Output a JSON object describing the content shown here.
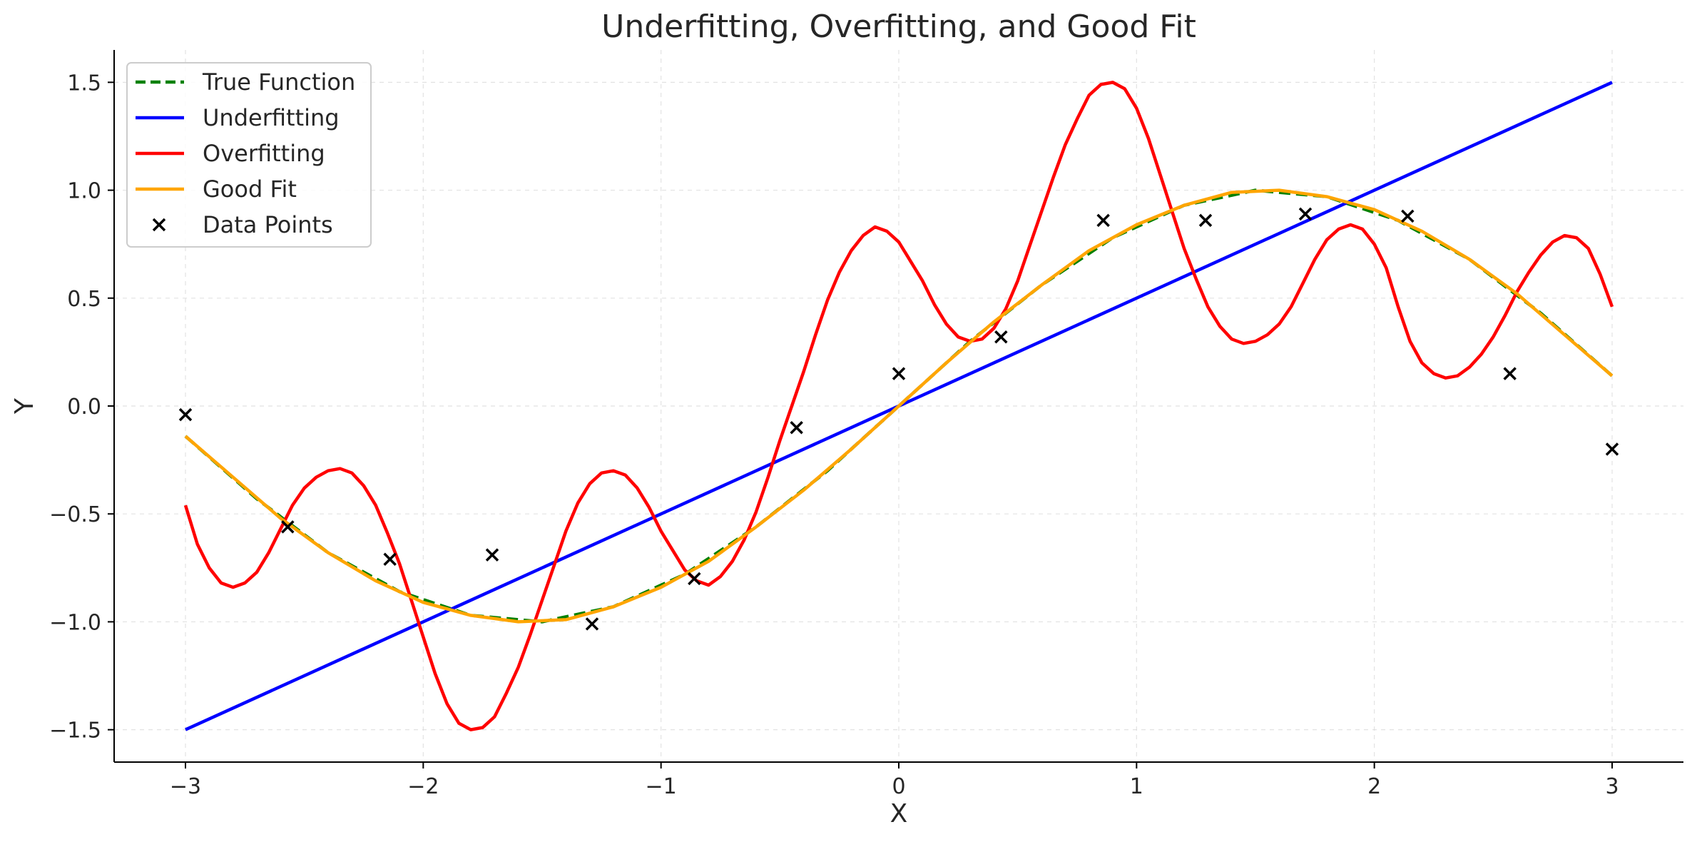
{
  "chart_data": {
    "type": "line",
    "title": "Underfitting, Overfitting, and Good Fit",
    "xlabel": "X",
    "ylabel": "Y",
    "xlim": [
      -3.3,
      3.3
    ],
    "ylim": [
      -1.65,
      1.65
    ],
    "x_ticks": [
      -3,
      -2,
      -1,
      0,
      1,
      2,
      3
    ],
    "x_tick_labels": [
      "−3",
      "−2",
      "−1",
      "0",
      "1",
      "2",
      "3"
    ],
    "y_ticks": [
      -1.5,
      -1.0,
      -0.5,
      0.0,
      0.5,
      1.0,
      1.5
    ],
    "y_tick_labels": [
      "−1.5",
      "−1.0",
      "−0.5",
      "0.0",
      "0.5",
      "1.0",
      "1.5"
    ],
    "grid": true,
    "legend_position": "top-left",
    "series": [
      {
        "name": "True Function",
        "style": "dashed",
        "color": "#008000",
        "x": [
          -3.0,
          -2.7,
          -2.4,
          -2.1,
          -1.8,
          -1.5,
          -1.2,
          -0.9,
          -0.6,
          -0.3,
          0.0,
          0.3,
          0.6,
          0.9,
          1.2,
          1.5,
          1.8,
          2.1,
          2.4,
          2.7,
          3.0
        ],
        "y": [
          -0.14,
          -0.43,
          -0.68,
          -0.86,
          -0.97,
          -1.0,
          -0.93,
          -0.78,
          -0.56,
          -0.3,
          0.0,
          0.3,
          0.56,
          0.78,
          0.93,
          1.0,
          0.97,
          0.86,
          0.68,
          0.43,
          0.14
        ]
      },
      {
        "name": "Underfitting",
        "style": "solid",
        "color": "#0000ff",
        "x": [
          -3.0,
          3.0
        ],
        "y": [
          -1.5,
          1.5
        ]
      },
      {
        "name": "Overfitting",
        "style": "solid",
        "color": "#ff0000",
        "x": [
          -3.0,
          -2.95,
          -2.9,
          -2.85,
          -2.8,
          -2.75,
          -2.7,
          -2.65,
          -2.6,
          -2.55,
          -2.5,
          -2.45,
          -2.4,
          -2.35,
          -2.3,
          -2.25,
          -2.2,
          -2.15,
          -2.1,
          -2.05,
          -2.0,
          -1.95,
          -1.9,
          -1.85,
          -1.8,
          -1.75,
          -1.7,
          -1.65,
          -1.6,
          -1.55,
          -1.5,
          -1.45,
          -1.4,
          -1.35,
          -1.3,
          -1.25,
          -1.2,
          -1.15,
          -1.1,
          -1.05,
          -1.0,
          -0.95,
          -0.9,
          -0.85,
          -0.8,
          -0.75,
          -0.7,
          -0.65,
          -0.6,
          -0.55,
          -0.5,
          -0.45,
          -0.4,
          -0.35,
          -0.3,
          -0.25,
          -0.2,
          -0.15,
          -0.1,
          -0.05,
          0.0,
          0.05,
          0.1,
          0.15,
          0.2,
          0.25,
          0.3,
          0.35,
          0.4,
          0.45,
          0.5,
          0.55,
          0.6,
          0.65,
          0.7,
          0.75,
          0.8,
          0.85,
          0.9,
          0.95,
          1.0,
          1.05,
          1.1,
          1.15,
          1.2,
          1.25,
          1.3,
          1.35,
          1.4,
          1.45,
          1.5,
          1.55,
          1.6,
          1.65,
          1.7,
          1.75,
          1.8,
          1.85,
          1.9,
          1.95,
          2.0,
          2.05,
          2.1,
          2.15,
          2.2,
          2.25,
          2.3,
          2.35,
          2.4,
          2.45,
          2.5,
          2.55,
          2.6,
          2.65,
          2.7,
          2.75,
          2.8,
          2.85,
          2.9,
          2.95,
          3.0
        ],
        "y": [
          -0.46,
          -0.64,
          -0.75,
          -0.82,
          -0.84,
          -0.82,
          -0.77,
          -0.68,
          -0.57,
          -0.46,
          -0.38,
          -0.33,
          -0.3,
          -0.29,
          -0.31,
          -0.37,
          -0.46,
          -0.59,
          -0.73,
          -0.9,
          -1.07,
          -1.24,
          -1.38,
          -1.47,
          -1.5,
          -1.49,
          -1.44,
          -1.33,
          -1.21,
          -1.06,
          -0.9,
          -0.74,
          -0.58,
          -0.45,
          -0.36,
          -0.31,
          -0.3,
          -0.32,
          -0.38,
          -0.47,
          -0.58,
          -0.67,
          -0.76,
          -0.81,
          -0.83,
          -0.79,
          -0.72,
          -0.62,
          -0.49,
          -0.33,
          -0.16,
          0.0,
          0.16,
          0.33,
          0.49,
          0.62,
          0.72,
          0.79,
          0.83,
          0.81,
          0.76,
          0.67,
          0.58,
          0.47,
          0.38,
          0.32,
          0.3,
          0.31,
          0.36,
          0.45,
          0.58,
          0.74,
          0.9,
          1.06,
          1.21,
          1.33,
          1.44,
          1.49,
          1.5,
          1.47,
          1.38,
          1.24,
          1.07,
          0.9,
          0.73,
          0.59,
          0.46,
          0.37,
          0.31,
          0.29,
          0.3,
          0.33,
          0.38,
          0.46,
          0.57,
          0.68,
          0.77,
          0.82,
          0.84,
          0.82,
          0.75,
          0.64,
          0.46,
          0.3,
          0.2,
          0.15,
          0.13,
          0.14,
          0.18,
          0.24,
          0.32,
          0.42,
          0.53,
          0.62,
          0.7,
          0.76,
          0.79,
          0.78,
          0.73,
          0.61,
          0.46
        ]
      },
      {
        "name": "Good Fit",
        "style": "solid",
        "color": "#ffa500",
        "x": [
          -3.0,
          -2.8,
          -2.6,
          -2.4,
          -2.2,
          -2.0,
          -1.8,
          -1.6,
          -1.4,
          -1.2,
          -1.0,
          -0.8,
          -0.6,
          -0.4,
          -0.2,
          0.0,
          0.2,
          0.4,
          0.6,
          0.8,
          1.0,
          1.2,
          1.4,
          1.6,
          1.8,
          2.0,
          2.2,
          2.4,
          2.6,
          2.8,
          3.0
        ],
        "y": [
          -0.14,
          -0.33,
          -0.52,
          -0.68,
          -0.81,
          -0.91,
          -0.97,
          -1.0,
          -0.99,
          -0.93,
          -0.84,
          -0.72,
          -0.56,
          -0.39,
          -0.2,
          0.0,
          0.2,
          0.39,
          0.56,
          0.72,
          0.84,
          0.93,
          0.99,
          1.0,
          0.97,
          0.91,
          0.81,
          0.68,
          0.52,
          0.33,
          0.14
        ]
      },
      {
        "name": "Data Points",
        "style": "marker-x",
        "color": "#000000",
        "x": [
          -3.0,
          -2.57,
          -2.14,
          -1.71,
          -1.29,
          -0.86,
          -0.43,
          0.0,
          0.43,
          0.86,
          1.29,
          1.71,
          2.14,
          2.57,
          3.0
        ],
        "y": [
          -0.04,
          -0.56,
          -0.71,
          -0.69,
          -1.01,
          -0.8,
          -0.1,
          0.15,
          0.32,
          0.86,
          0.86,
          0.89,
          0.88,
          0.15,
          -0.2
        ]
      }
    ]
  }
}
